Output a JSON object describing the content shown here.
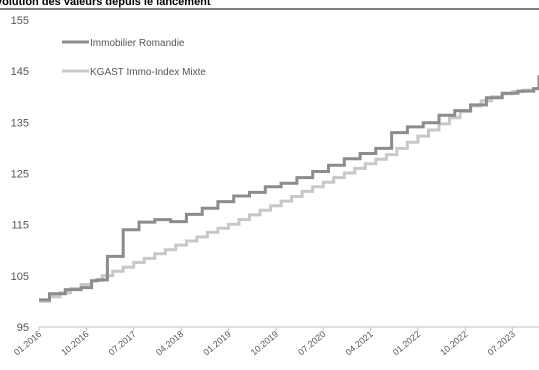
{
  "chart_data": {
    "type": "line",
    "title": "volution des valeurs depuis le lancement",
    "xlabel": "",
    "ylabel": "",
    "ylim": [
      95,
      155
    ],
    "yticks": [
      "95",
      "105",
      "115",
      "125",
      "135",
      "145",
      "155"
    ],
    "xlim": [
      "01.2016",
      "12.2023"
    ],
    "xticks": [
      "01.2016",
      "10.2016",
      "07.2017",
      "04.2018",
      "01.2019",
      "10.2019",
      "07.2020",
      "04.2021",
      "01.2022",
      "10.2022",
      "07.2023"
    ],
    "grid": false,
    "legend_position": "top-left",
    "series": [
      {
        "name": "Immobilier Romandie",
        "color": "#8c8c8c",
        "style": "step",
        "points": [
          [
            "01.2016",
            100.3
          ],
          [
            "03.2016",
            101.5
          ],
          [
            "06.2016",
            102.3
          ],
          [
            "09.2016",
            102.7
          ],
          [
            "11.2016",
            104.0
          ],
          [
            "12.2016",
            104.2
          ],
          [
            "02.2017",
            108.8
          ],
          [
            "05.2017",
            114.0
          ],
          [
            "08.2017",
            115.5
          ],
          [
            "11.2017",
            116.0
          ],
          [
            "02.2018",
            115.6
          ],
          [
            "05.2018",
            117.0
          ],
          [
            "08.2018",
            118.2
          ],
          [
            "11.2018",
            119.5
          ],
          [
            "02.2019",
            120.6
          ],
          [
            "05.2019",
            121.3
          ],
          [
            "08.2019",
            122.4
          ],
          [
            "11.2019",
            123.1
          ],
          [
            "02.2020",
            124.2
          ],
          [
            "05.2020",
            125.4
          ],
          [
            "08.2020",
            126.6
          ],
          [
            "11.2020",
            127.9
          ],
          [
            "02.2021",
            128.9
          ],
          [
            "05.2021",
            129.9
          ],
          [
            "08.2021",
            133.0
          ],
          [
            "11.2021",
            134.1
          ],
          [
            "02.2022",
            134.9
          ],
          [
            "05.2022",
            136.4
          ],
          [
            "08.2022",
            137.3
          ],
          [
            "11.2022",
            138.4
          ],
          [
            "02.2023",
            139.8
          ],
          [
            "05.2023",
            140.7
          ],
          [
            "08.2023",
            141.1
          ],
          [
            "11.2023",
            141.6
          ],
          [
            "12.2023",
            144.2
          ]
        ]
      },
      {
        "name": "KGAST Immo-Index Mixte",
        "color": "#c8c8c8",
        "style": "step",
        "points": [
          [
            "01.2016",
            100.0
          ],
          [
            "03.2016",
            100.9
          ],
          [
            "05.2016",
            101.7
          ],
          [
            "07.2016",
            102.5
          ],
          [
            "09.2016",
            103.3
          ],
          [
            "11.2016",
            104.1
          ],
          [
            "01.2017",
            105.0
          ],
          [
            "03.2017",
            105.9
          ],
          [
            "05.2017",
            106.7
          ],
          [
            "07.2017",
            107.6
          ],
          [
            "09.2017",
            108.4
          ],
          [
            "11.2017",
            109.3
          ],
          [
            "01.2018",
            110.1
          ],
          [
            "03.2018",
            111.0
          ],
          [
            "05.2018",
            111.8
          ],
          [
            "07.2018",
            112.6
          ],
          [
            "09.2018",
            113.5
          ],
          [
            "11.2018",
            114.3
          ],
          [
            "01.2019",
            115.1
          ],
          [
            "03.2019",
            116.0
          ],
          [
            "05.2019",
            116.9
          ],
          [
            "07.2019",
            117.8
          ],
          [
            "09.2019",
            118.7
          ],
          [
            "11.2019",
            119.6
          ],
          [
            "01.2020",
            120.5
          ],
          [
            "03.2020",
            121.5
          ],
          [
            "05.2020",
            122.4
          ],
          [
            "07.2020",
            123.3
          ],
          [
            "09.2020",
            124.2
          ],
          [
            "11.2020",
            125.1
          ],
          [
            "01.2021",
            126.0
          ],
          [
            "03.2021",
            126.9
          ],
          [
            "05.2021",
            127.8
          ],
          [
            "07.2021",
            128.7
          ],
          [
            "09.2021",
            129.9
          ],
          [
            "11.2021",
            131.1
          ],
          [
            "01.2022",
            132.3
          ],
          [
            "03.2022",
            133.5
          ],
          [
            "05.2022",
            134.7
          ],
          [
            "07.2022",
            135.9
          ],
          [
            "09.2022",
            137.1
          ],
          [
            "11.2022",
            138.2
          ],
          [
            "01.2023",
            139.2
          ],
          [
            "03.2023",
            140.0
          ],
          [
            "05.2023",
            140.6
          ],
          [
            "07.2023",
            141.0
          ],
          [
            "09.2023",
            141.3
          ],
          [
            "11.2023",
            141.6
          ],
          [
            "12.2023",
            141.8
          ]
        ]
      }
    ]
  }
}
